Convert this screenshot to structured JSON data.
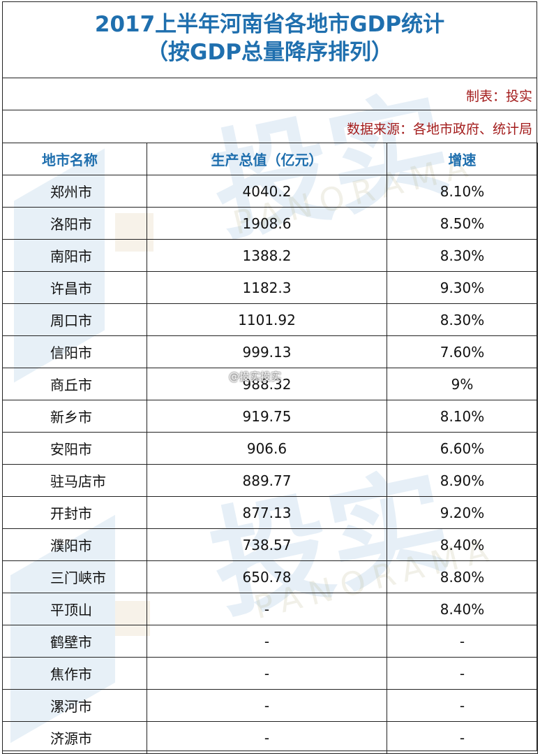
{
  "header": {
    "title_line1": "2017上半年河南省各地市GDP统计",
    "title_line2": "（按GDP总量降序排列）",
    "maker": "制表：投实",
    "source": "数据来源：各地市政府、统计局"
  },
  "table": {
    "columns": [
      "地市名称",
      "生产总值（亿元）",
      "增速"
    ],
    "rows": [
      {
        "city": "郑州市",
        "gdp": "4040.2",
        "growth": "8.10%"
      },
      {
        "city": "洛阳市",
        "gdp": "1908.6",
        "growth": "8.50%"
      },
      {
        "city": "南阳市",
        "gdp": "1388.2",
        "growth": "8.30%"
      },
      {
        "city": "许昌市",
        "gdp": "1182.3",
        "growth": "9.30%"
      },
      {
        "city": "周口市",
        "gdp": "1101.92",
        "growth": "8.30%"
      },
      {
        "city": "信阳市",
        "gdp": "999.13",
        "growth": "7.60%"
      },
      {
        "city": "商丘市",
        "gdp": "988.32",
        "growth": "9%"
      },
      {
        "city": "新乡市",
        "gdp": "919.75",
        "growth": "8.10%"
      },
      {
        "city": "安阳市",
        "gdp": "906.6",
        "growth": "6.60%"
      },
      {
        "city": "驻马店市",
        "gdp": "889.77",
        "growth": "8.90%"
      },
      {
        "city": "开封市",
        "gdp": "877.13",
        "growth": "9.20%"
      },
      {
        "city": "濮阳市",
        "gdp": "738.57",
        "growth": "8.40%"
      },
      {
        "city": "三门峡市",
        "gdp": "650.78",
        "growth": "8.80%"
      },
      {
        "city": "平顶山",
        "gdp": "-",
        "growth": "8.40%"
      },
      {
        "city": "鹤壁市",
        "gdp": "-",
        "growth": "-"
      },
      {
        "city": "焦作市",
        "gdp": "-",
        "growth": "-"
      },
      {
        "city": "漯河市",
        "gdp": "-",
        "growth": "-"
      },
      {
        "city": "济源市",
        "gdp": "-",
        "growth": "-"
      }
    ]
  },
  "watermark": {
    "brand_cn": "投实",
    "brand_en": "PANORAMA",
    "weibo_tag": "@投实投实"
  },
  "colors": {
    "title": "#1f6fae",
    "meta": "#a31c1c",
    "header_cells": "#1f6fae"
  }
}
